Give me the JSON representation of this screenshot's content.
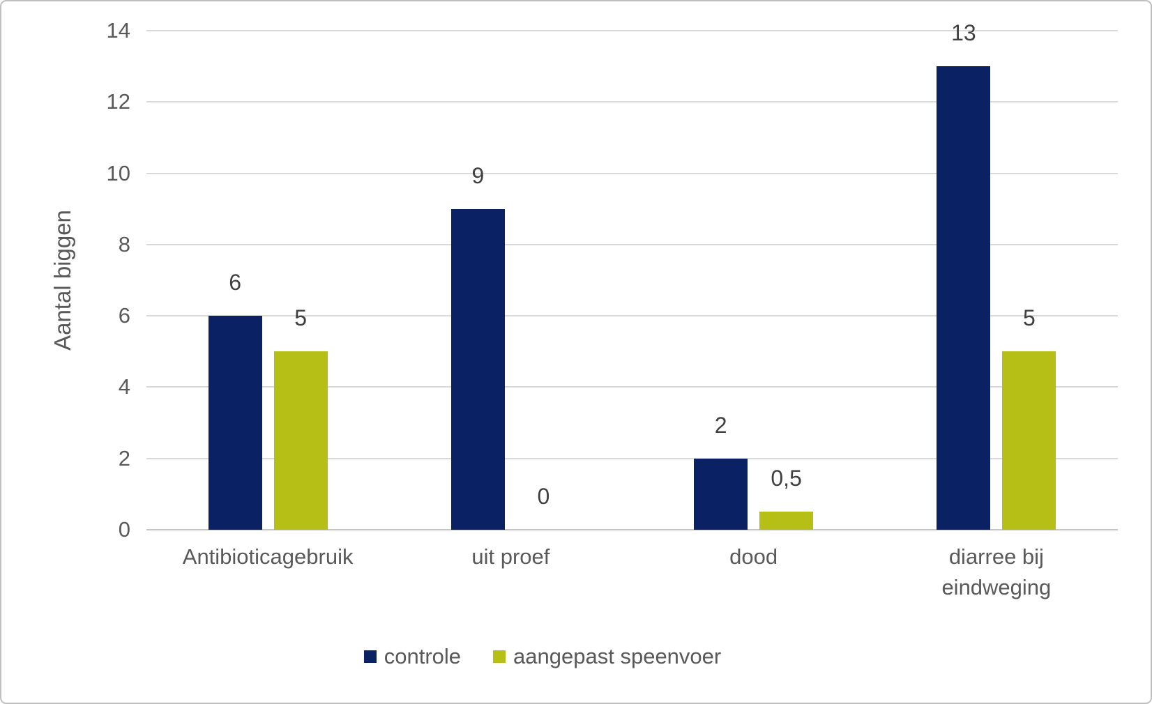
{
  "figure": {
    "background": "#FFFFFF",
    "border_color": "#BFBFBF"
  },
  "chart_data": {
    "type": "bar",
    "title": "",
    "xlabel": "",
    "ylabel": "Aantal biggen",
    "ylim": [
      0,
      14
    ],
    "yticks": [
      0,
      2,
      4,
      6,
      8,
      10,
      12,
      14
    ],
    "grid": true,
    "legend_position": "bottom",
    "categories": [
      "Antibioticagebruik",
      "uit proef",
      "dood",
      "diarree bij\neindweging"
    ],
    "series": [
      {
        "name": "controle",
        "color": "#0A2264",
        "values": [
          6,
          9,
          2,
          13
        ],
        "labels": [
          "6",
          "9",
          "2",
          "13"
        ]
      },
      {
        "name": "aangepast speenvoer",
        "color": "#B6BF15",
        "values": [
          5,
          0,
          0.5,
          5
        ],
        "labels": [
          "5",
          "0",
          "0,5",
          "5"
        ]
      }
    ],
    "colors": {
      "gridline": "#D9D9D9",
      "axis_line": "#C6C6C6",
      "tick_text": "#595959",
      "data_label_text": "#404040"
    }
  }
}
